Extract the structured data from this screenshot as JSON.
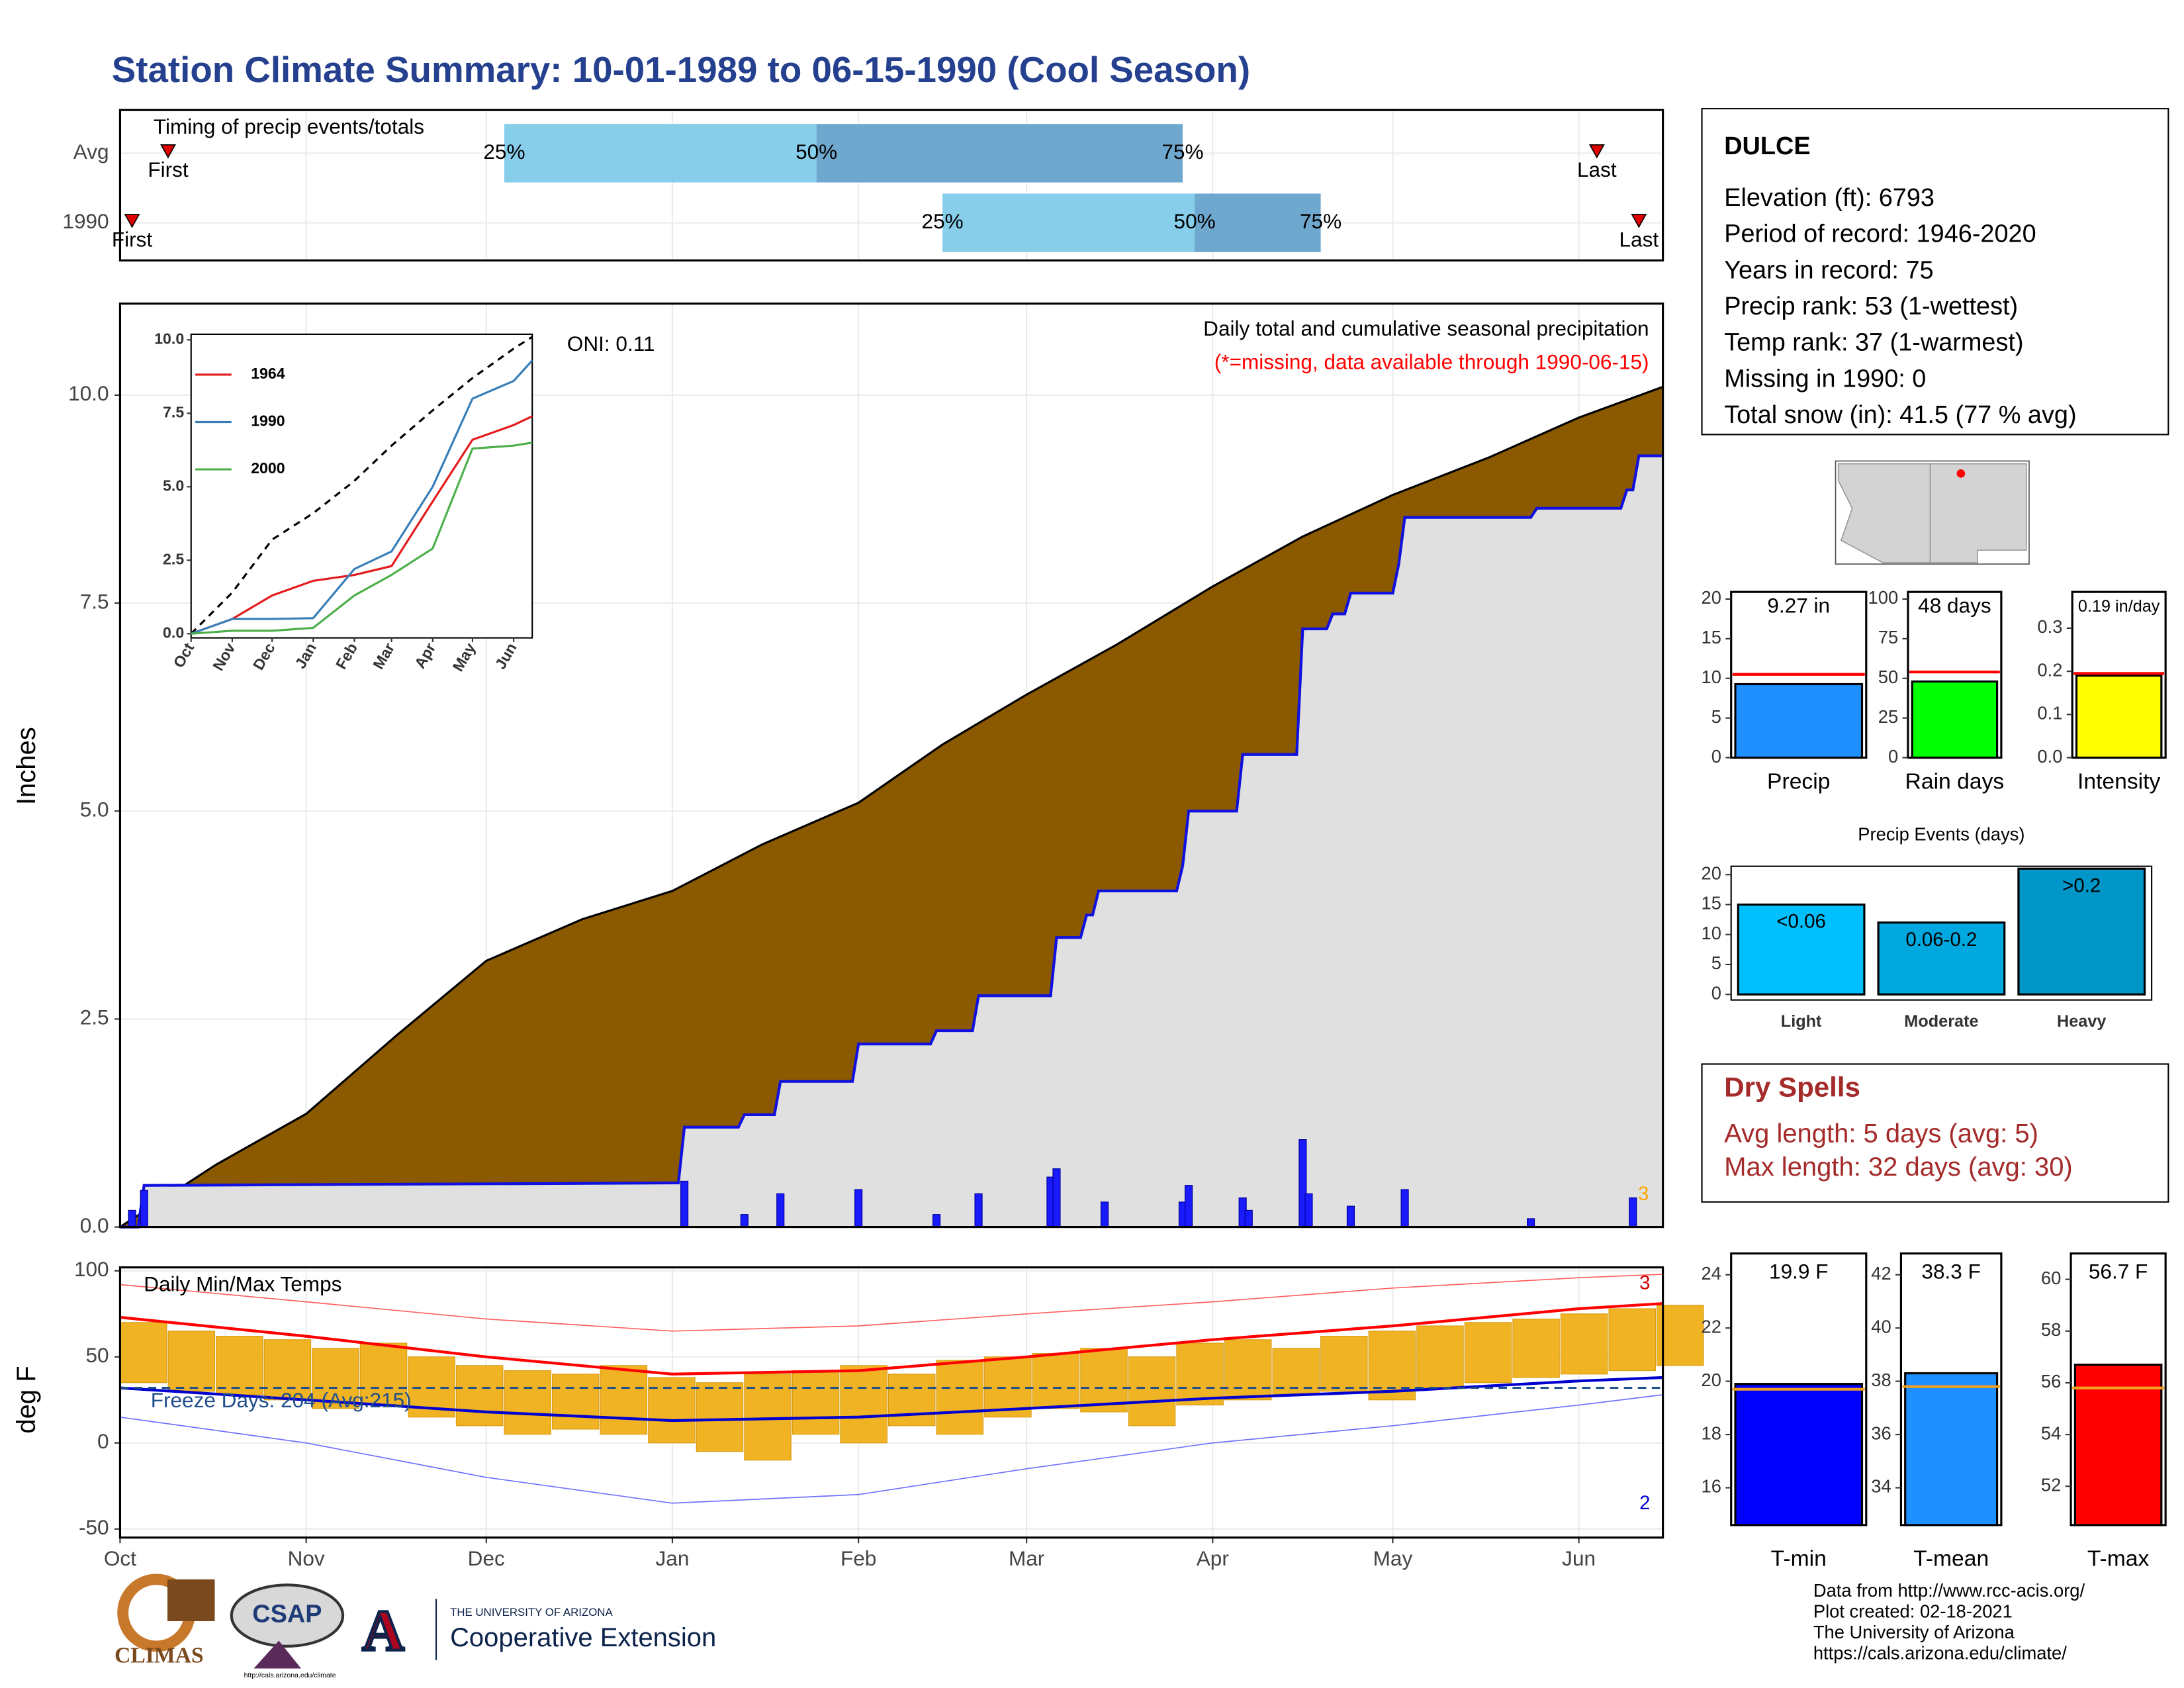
{
  "title": "Station Climate Summary: 10-01-1989 to 06-15-1990 (Cool Season)",
  "chart_data": [
    {
      "type": "timing",
      "title": "Timing of precip events/totals",
      "xlim": [
        0,
        257
      ],
      "categories": [
        "Avg",
        "1990"
      ],
      "rows": [
        {
          "first": 8,
          "p25": 64,
          "p50": 116,
          "p75": 177,
          "last": 246
        },
        {
          "first": 2,
          "p25": 137,
          "p50": 179,
          "p75": 200,
          "last": 253
        }
      ],
      "labels": {
        "first": "First",
        "last": "Last",
        "p25": "25%",
        "p50": "50%",
        "p75": "75%"
      },
      "colors": [
        "#87ceeb",
        "#6fa8cf"
      ]
    },
    {
      "type": "precip",
      "title": "Daily total and cumulative seasonal precipitation",
      "subtitle": "(*=missing, data available through 1990-06-15)",
      "annotation": "ONI: 0.11",
      "corner_note": "3",
      "ylabel": "Inches",
      "xlim": [
        0,
        257
      ],
      "ylim": [
        0,
        11.1
      ],
      "yticks": [
        {
          "value": 0,
          "label": "0.0"
        },
        {
          "value": 2.5,
          "label": "2.5"
        },
        {
          "value": 5,
          "label": "5.0"
        },
        {
          "value": 7.5,
          "label": "7.5"
        },
        {
          "value": 10,
          "label": "10.0"
        }
      ],
      "series": [
        {
          "color": "#8b5a00",
          "x": [
            0,
            16,
            31,
            46,
            61,
            77,
            92,
            107,
            123,
            137,
            151,
            166,
            182,
            197,
            212,
            228,
            243,
            257
          ],
          "values": [
            0,
            0.75,
            1.36,
            2.3,
            3.2,
            3.7,
            4.04,
            4.6,
            5.1,
            5.8,
            6.4,
            7.0,
            7.7,
            8.3,
            8.8,
            9.25,
            9.73,
            10.1
          ]
        },
        {
          "color": "#1010e0",
          "x": [
            0,
            3,
            4,
            93,
            94,
            103,
            104,
            109,
            110,
            122,
            123,
            135,
            136,
            142,
            143,
            155,
            156,
            160,
            161,
            162,
            163,
            176,
            177,
            178,
            186,
            187,
            196,
            197,
            201,
            202,
            204,
            205,
            212,
            213,
            214,
            235,
            236,
            250,
            251,
            252,
            253,
            257
          ],
          "values": [
            0,
            0,
            0.5,
            0.53,
            1.2,
            1.2,
            1.35,
            1.35,
            1.75,
            1.75,
            2.2,
            2.2,
            2.36,
            2.36,
            2.78,
            2.78,
            3.48,
            3.48,
            3.75,
            3.75,
            4.04,
            4.04,
            4.34,
            5.0,
            5.0,
            5.68,
            5.68,
            7.19,
            7.19,
            7.37,
            7.37,
            7.62,
            7.62,
            7.97,
            8.53,
            8.53,
            8.64,
            8.64,
            8.86,
            8.86,
            9.27,
            9.27
          ]
        }
      ],
      "daily": {
        "color": "#1a1aff",
        "x": [
          2,
          4,
          94,
          104,
          110,
          123,
          136,
          143,
          155,
          156,
          164,
          177,
          178,
          187,
          188,
          197,
          198,
          205,
          214,
          235,
          252
        ],
        "values": [
          0.2,
          0.44,
          0.55,
          0.15,
          0.4,
          0.45,
          0.15,
          0.4,
          0.6,
          0.7,
          0.3,
          0.3,
          0.5,
          0.35,
          0.2,
          1.05,
          0.4,
          0.25,
          0.45,
          0.1,
          0.35
        ]
      }
    },
    {
      "type": "inset",
      "xlim": [
        0,
        257
      ],
      "ylim": [
        0,
        10
      ],
      "yticks": [
        {
          "value": 0,
          "label": "0.0"
        },
        {
          "value": 2.5,
          "label": "2.5"
        },
        {
          "value": 5,
          "label": "5.0"
        },
        {
          "value": 7.5,
          "label": "7.5"
        },
        {
          "value": 10,
          "label": "10.0"
        }
      ],
      "xticks": [
        {
          "value": 0,
          "label": "Oct"
        },
        {
          "value": 31,
          "label": "Nov"
        },
        {
          "value": 61,
          "label": "Dec"
        },
        {
          "value": 92,
          "label": "Jan"
        },
        {
          "value": 123,
          "label": "Feb"
        },
        {
          "value": 151,
          "label": "Mar"
        },
        {
          "value": 182,
          "label": "Apr"
        },
        {
          "value": 212,
          "label": "May"
        },
        {
          "value": 243,
          "label": "Jun"
        }
      ],
      "x": [
        0,
        31,
        61,
        92,
        123,
        151,
        182,
        212,
        243,
        257
      ],
      "average": [
        0,
        1.4,
        3.2,
        4.1,
        5.2,
        6.4,
        7.6,
        8.7,
        9.7,
        10.1
      ],
      "series": [
        {
          "name": "1964",
          "color": "#e41a1c",
          "values": [
            0,
            0.5,
            1.3,
            1.8,
            2.0,
            2.3,
            4.5,
            6.6,
            7.1,
            7.4
          ]
        },
        {
          "name": "1990",
          "color": "#377eb8",
          "values": [
            0,
            0.5,
            0.5,
            0.53,
            2.2,
            2.8,
            5.0,
            8.0,
            8.6,
            9.3
          ]
        },
        {
          "name": "2000",
          "color": "#4daf4a",
          "values": [
            0,
            0.1,
            0.1,
            0.2,
            1.3,
            2.0,
            2.9,
            6.3,
            6.4,
            6.5
          ]
        }
      ]
    },
    {
      "type": "temps",
      "title": "Daily Min/Max Temps",
      "ylabel": "deg F",
      "freeze_label": "Freeze Days: 204 (Avg:215)",
      "freeze": 32,
      "note_high": "3",
      "note_low": "2",
      "xlim": [
        0,
        257
      ],
      "ylim": [
        -55,
        102
      ],
      "yticks": [
        -50,
        0,
        50,
        100
      ],
      "xticks": [
        {
          "value": 0,
          "label": "Oct"
        },
        {
          "value": 31,
          "label": "Nov"
        },
        {
          "value": 61,
          "label": "Dec"
        },
        {
          "value": 92,
          "label": "Jan"
        },
        {
          "value": 123,
          "label": "Feb"
        },
        {
          "value": 151,
          "label": "Mar"
        },
        {
          "value": 182,
          "label": "Apr"
        },
        {
          "value": 212,
          "label": "May"
        },
        {
          "value": 243,
          "label": "Jun"
        }
      ],
      "daily": {
        "color": "#f0b323",
        "x": [
          0,
          8,
          16,
          24,
          32,
          40,
          48,
          56,
          64,
          72,
          80,
          88,
          96,
          104,
          112,
          120,
          128,
          136,
          144,
          152,
          160,
          168,
          176,
          184,
          192,
          200,
          208,
          216,
          224,
          232,
          240,
          248,
          256
        ],
        "high": [
          70,
          65,
          62,
          60,
          55,
          58,
          50,
          45,
          42,
          40,
          45,
          38,
          35,
          40,
          42,
          45,
          40,
          48,
          50,
          52,
          55,
          50,
          58,
          60,
          55,
          62,
          65,
          68,
          70,
          72,
          75,
          78,
          80
        ],
        "low": [
          35,
          30,
          28,
          25,
          20,
          22,
          15,
          10,
          5,
          8,
          5,
          0,
          -5,
          -10,
          5,
          0,
          10,
          5,
          15,
          20,
          18,
          10,
          22,
          25,
          28,
          30,
          25,
          32,
          35,
          38,
          40,
          42,
          45
        ]
      },
      "x": [
        0,
        31,
        61,
        92,
        123,
        151,
        182,
        212,
        243,
        257
      ],
      "normal_max": [
        73,
        62,
        50,
        40,
        42,
        50,
        60,
        68,
        78,
        81
      ],
      "normal_min": [
        32,
        25,
        18,
        13,
        15,
        20,
        26,
        30,
        36,
        38
      ],
      "record_high": [
        92,
        82,
        72,
        65,
        68,
        75,
        82,
        90,
        96,
        98
      ],
      "record_low": [
        15,
        0,
        -20,
        -35,
        -30,
        -15,
        0,
        10,
        22,
        28
      ]
    },
    {
      "type": "mini",
      "categories": [
        "Precip"
      ],
      "values": [
        9.27
      ],
      "value_labels": [
        "9.27 in"
      ],
      "average": 10.5,
      "color": "#1e90ff",
      "ylim": [
        0,
        20.9
      ],
      "yticks": [
        0,
        5,
        10,
        15,
        20
      ]
    },
    {
      "type": "mini",
      "categories": [
        "Rain days"
      ],
      "values": [
        48
      ],
      "value_labels": [
        "48 days"
      ],
      "average": 54,
      "color": "#00ff00",
      "ylim": [
        0,
        104.5
      ],
      "yticks": [
        0,
        25,
        50,
        75,
        100
      ]
    },
    {
      "type": "mini",
      "categories": [
        "Intensity"
      ],
      "values": [
        0.19
      ],
      "value_labels": [
        "0.19 in/day"
      ],
      "average": 0.195,
      "color": "#ffff00",
      "ylim": [
        0,
        0.384
      ],
      "yticks": [
        {
          "value": 0,
          "label": "0.0"
        },
        0.1,
        0.2,
        0.3
      ]
    },
    {
      "type": "events",
      "title": "Precip Events (days)",
      "categories": [
        "Light",
        "Moderate",
        "Heavy"
      ],
      "values": [
        15,
        12,
        21
      ],
      "value_labels": [
        "<0.06",
        "0.06-0.2",
        ">0.2"
      ],
      "colors": [
        "#00bfff",
        "#00a8e0",
        "#0096c8"
      ],
      "ylim": [
        0,
        21.4
      ],
      "yticks": [
        0,
        5,
        10,
        15,
        20
      ]
    },
    {
      "type": "mini",
      "categories": [
        "T-min"
      ],
      "values": [
        19.9
      ],
      "value_labels": [
        "19.9 F"
      ],
      "average": 19.7,
      "color": "#0000ff",
      "ylim": [
        14.6,
        24.8
      ],
      "yticks": [
        16,
        18,
        20,
        22,
        24
      ]
    },
    {
      "type": "mini",
      "categories": [
        "T-mean"
      ],
      "values": [
        38.3
      ],
      "value_labels": [
        "38.3 F"
      ],
      "average": 37.8,
      "color": "#1e90ff",
      "ylim": [
        32.6,
        42.8
      ],
      "yticks": [
        34,
        36,
        38,
        40,
        42
      ]
    },
    {
      "type": "mini",
      "categories": [
        "T-max"
      ],
      "values": [
        56.7
      ],
      "value_labels": [
        "56.7 F"
      ],
      "average": 55.8,
      "color": "#ff0000",
      "ylim": [
        50.5,
        61.0
      ],
      "yticks": [
        52,
        54,
        56,
        58,
        60
      ]
    }
  ],
  "station": {
    "name": "DULCE",
    "lines": [
      "Elevation (ft): 6793",
      "Period of record: 1946-2020",
      "Years in record: 75",
      "Precip rank: 53 (1-wettest)",
      "Temp rank: 37 (1-warmest)",
      "Missing in 1990: 0",
      "Total snow (in): 41.5 (77 % avg)"
    ]
  },
  "dry_spells": {
    "title": "Dry Spells",
    "lines": [
      "Avg length: 5 days (avg: 5)",
      "Max length: 32 days (avg: 30)"
    ]
  },
  "footer": {
    "lines": [
      "Data from http://www.rcc-acis.org/",
      "Plot created: 02-18-2021",
      "The University of Arizona",
      "https://cals.arizona.edu/climate/"
    ],
    "logos": [
      "CLIMAS",
      "CSAP",
      "http://cals.arizona.edu/climate",
      "THE UNIVERSITY OF ARIZONA",
      "Cooperative Extension"
    ]
  }
}
